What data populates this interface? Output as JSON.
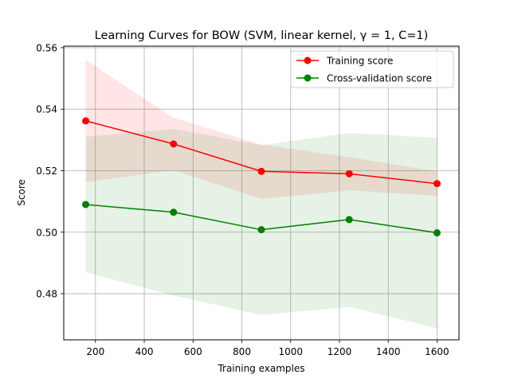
{
  "chart_data": {
    "type": "line",
    "title": "Learning Curves for BOW (SVM, linear kernel, γ = 1, C=1)",
    "xlabel": "Training examples",
    "ylabel": "Score",
    "xlim": [
      70,
      1690
    ],
    "ylim": [
      0.465,
      0.5605
    ],
    "xticks": [
      200,
      400,
      600,
      800,
      1000,
      1200,
      1400,
      1600
    ],
    "yticks": [
      0.48,
      0.5,
      0.52,
      0.54,
      0.56
    ],
    "ytick_labels": [
      "0.48",
      "0.50",
      "0.52",
      "0.54",
      "0.56"
    ],
    "grid": true,
    "legend_position": "top-right",
    "x": [
      160,
      520,
      880,
      1240,
      1600
    ],
    "series": [
      {
        "name": "Training score",
        "color": "#ff0000",
        "band_color": "#ff0000",
        "values": [
          0.5362,
          0.5287,
          0.5198,
          0.519,
          0.5158
        ],
        "upper": [
          0.556,
          0.5372,
          0.5285,
          0.5244,
          0.5197
        ],
        "lower": [
          0.5163,
          0.5202,
          0.5108,
          0.5136,
          0.5118
        ]
      },
      {
        "name": "Cross-validation score",
        "color": "#008000",
        "band_color": "#008000",
        "values": [
          0.509,
          0.5065,
          0.5008,
          0.5041,
          0.4998
        ],
        "upper": [
          0.531,
          0.5336,
          0.5283,
          0.5323,
          0.5307
        ],
        "lower": [
          0.487,
          0.4794,
          0.4731,
          0.4757,
          0.4688
        ]
      }
    ]
  }
}
